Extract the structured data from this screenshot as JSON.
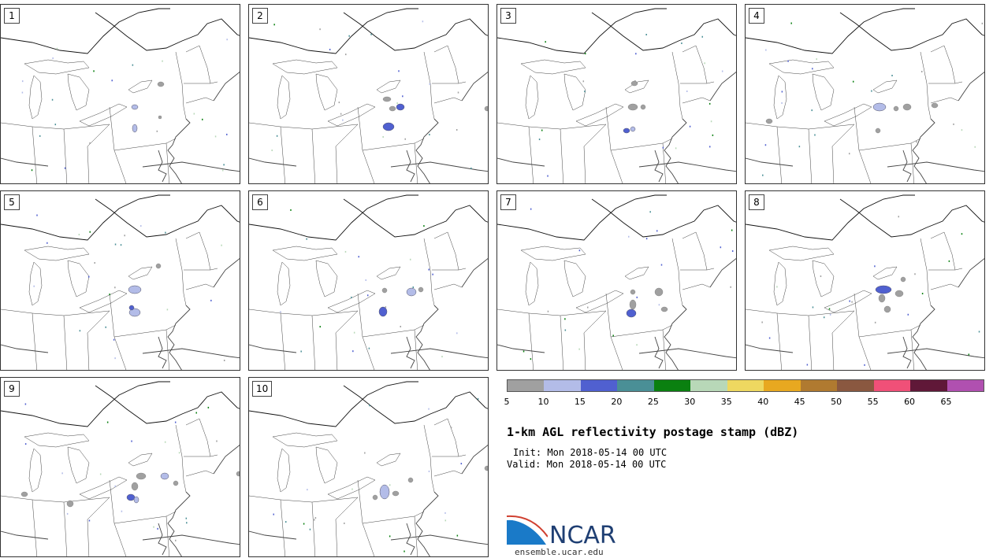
{
  "panels": [
    {
      "label": "1"
    },
    {
      "label": "2"
    },
    {
      "label": "3"
    },
    {
      "label": "4"
    },
    {
      "label": "5"
    },
    {
      "label": "6"
    },
    {
      "label": "7"
    },
    {
      "label": "8"
    },
    {
      "label": "9"
    },
    {
      "label": "10"
    }
  ],
  "title": "1-km AGL reflectivity postage stamp (dBZ)",
  "init_text": "Init: Mon 2018-05-14 00 UTC",
  "valid_text": "Valid: Mon 2018-05-14 00 UTC",
  "colorbar": {
    "colors": [
      "#a0a0a0",
      "#b3bce8",
      "#5060d0",
      "#4a8f96",
      "#0a8010",
      "#b8d8b8",
      "#eed860",
      "#e8a820",
      "#b07a30",
      "#8a5840",
      "#f05078",
      "#601838",
      "#b050b0"
    ],
    "ticks": [
      "5",
      "10",
      "15",
      "20",
      "25",
      "30",
      "35",
      "40",
      "45",
      "50",
      "55",
      "60",
      "65"
    ]
  },
  "logo": {
    "text": "NCAR",
    "url_text": "ensemble.ucar.edu"
  }
}
